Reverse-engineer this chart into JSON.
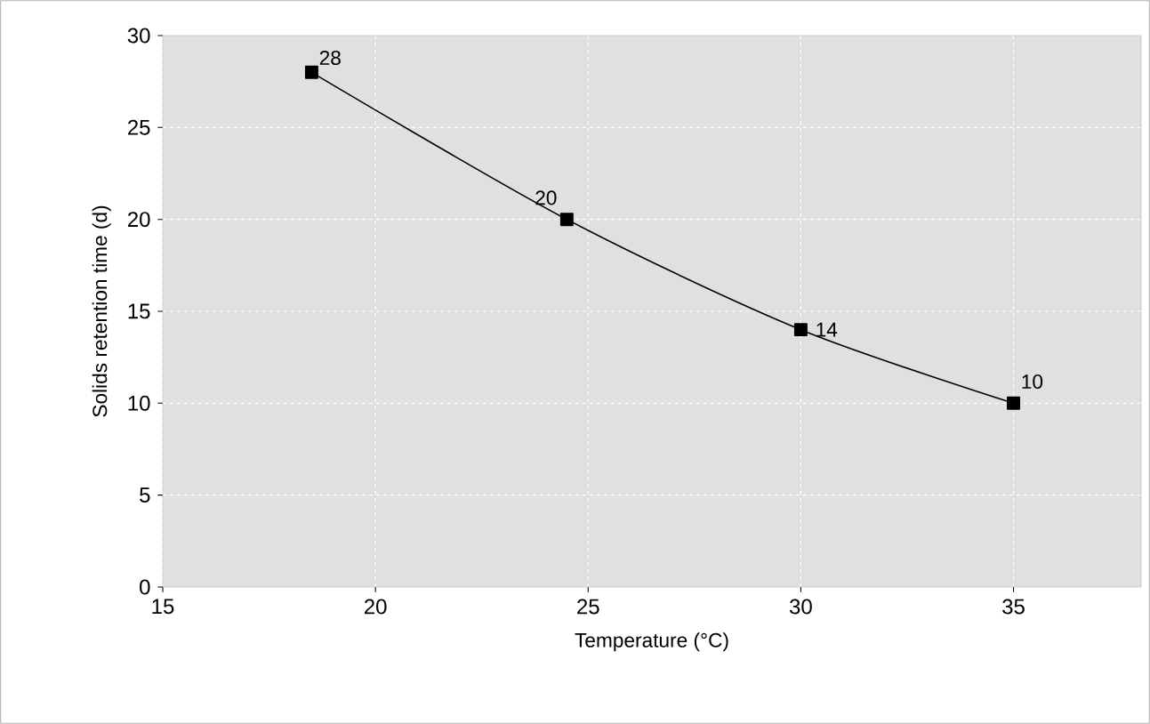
{
  "chart_data": {
    "type": "line",
    "xlabel": "Temperature (°C)",
    "ylabel": "Solids retention time (d)",
    "x": [
      18.5,
      24.5,
      30,
      35
    ],
    "values": [
      28,
      20,
      14,
      10
    ],
    "color": "#000000",
    "xlim": [
      15,
      38
    ],
    "ylim": [
      0,
      30
    ],
    "xticks": [
      15,
      20,
      25,
      30,
      35
    ],
    "yticks": [
      0,
      5,
      10,
      15,
      20,
      25,
      30
    ],
    "grid": true,
    "marker": "square",
    "line_style": "solid",
    "data_labels": true
  }
}
